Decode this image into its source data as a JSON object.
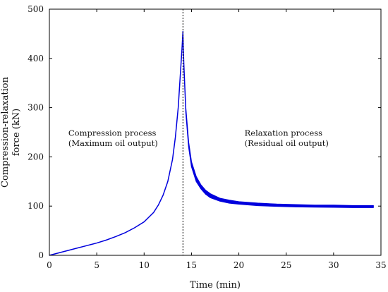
{
  "chart_data": {
    "type": "line",
    "xlabel": "Time (min)",
    "ylabel": "Compression-relaxation force (kN)",
    "xlim": [
      0,
      35
    ],
    "ylim": [
      0,
      500
    ],
    "xticks": [
      "0",
      "5",
      "10",
      "15",
      "20",
      "25",
      "30",
      "35"
    ],
    "yticks": [
      "0",
      "100",
      "200",
      "300",
      "400",
      "500"
    ],
    "grid": false,
    "legend": "none",
    "line_color": "#0000dd",
    "divider": {
      "x": 14.1,
      "style": "dashed",
      "color": "#000000"
    },
    "annotations": [
      {
        "text": "Compression process",
        "x": 2.0,
        "y": 243
      },
      {
        "text": "(Maximum oil output)",
        "x": 2.0,
        "y": 222
      },
      {
        "text": "Relaxation process",
        "x": 20.6,
        "y": 243
      },
      {
        "text": "(Residual oil output)",
        "x": 20.6,
        "y": 222
      }
    ],
    "series": [
      {
        "x": [
          0,
          1,
          2,
          3,
          4,
          5,
          6,
          7,
          8,
          9,
          10,
          11,
          11.5,
          12,
          12.5,
          13,
          13.3,
          13.6,
          13.8,
          14.0,
          14.1
        ],
        "y": [
          0,
          5,
          10,
          15,
          20,
          25,
          31,
          38,
          46,
          56,
          68,
          87,
          102,
          122,
          150,
          195,
          240,
          300,
          360,
          420,
          455
        ]
      },
      {
        "x": [
          14.1,
          14.2,
          14.4,
          14.7,
          15.0,
          15.5,
          16.0,
          16.5,
          17.0,
          18.0,
          19.0,
          20.0,
          22.0,
          24.0,
          26.0,
          28.0,
          30.0,
          32.0,
          34.2
        ],
        "y_upper": [
          455,
          390,
          300,
          230,
          190,
          160,
          143,
          132,
          125,
          116,
          112,
          109,
          106,
          104,
          103,
          102,
          102,
          101,
          101
        ],
        "y_lower": [
          455,
          380,
          290,
          220,
          180,
          150,
          135,
          124,
          117,
          110,
          106,
          104,
          101,
          99.5,
          98.5,
          98,
          97.5,
          97,
          97
        ]
      }
    ]
  }
}
